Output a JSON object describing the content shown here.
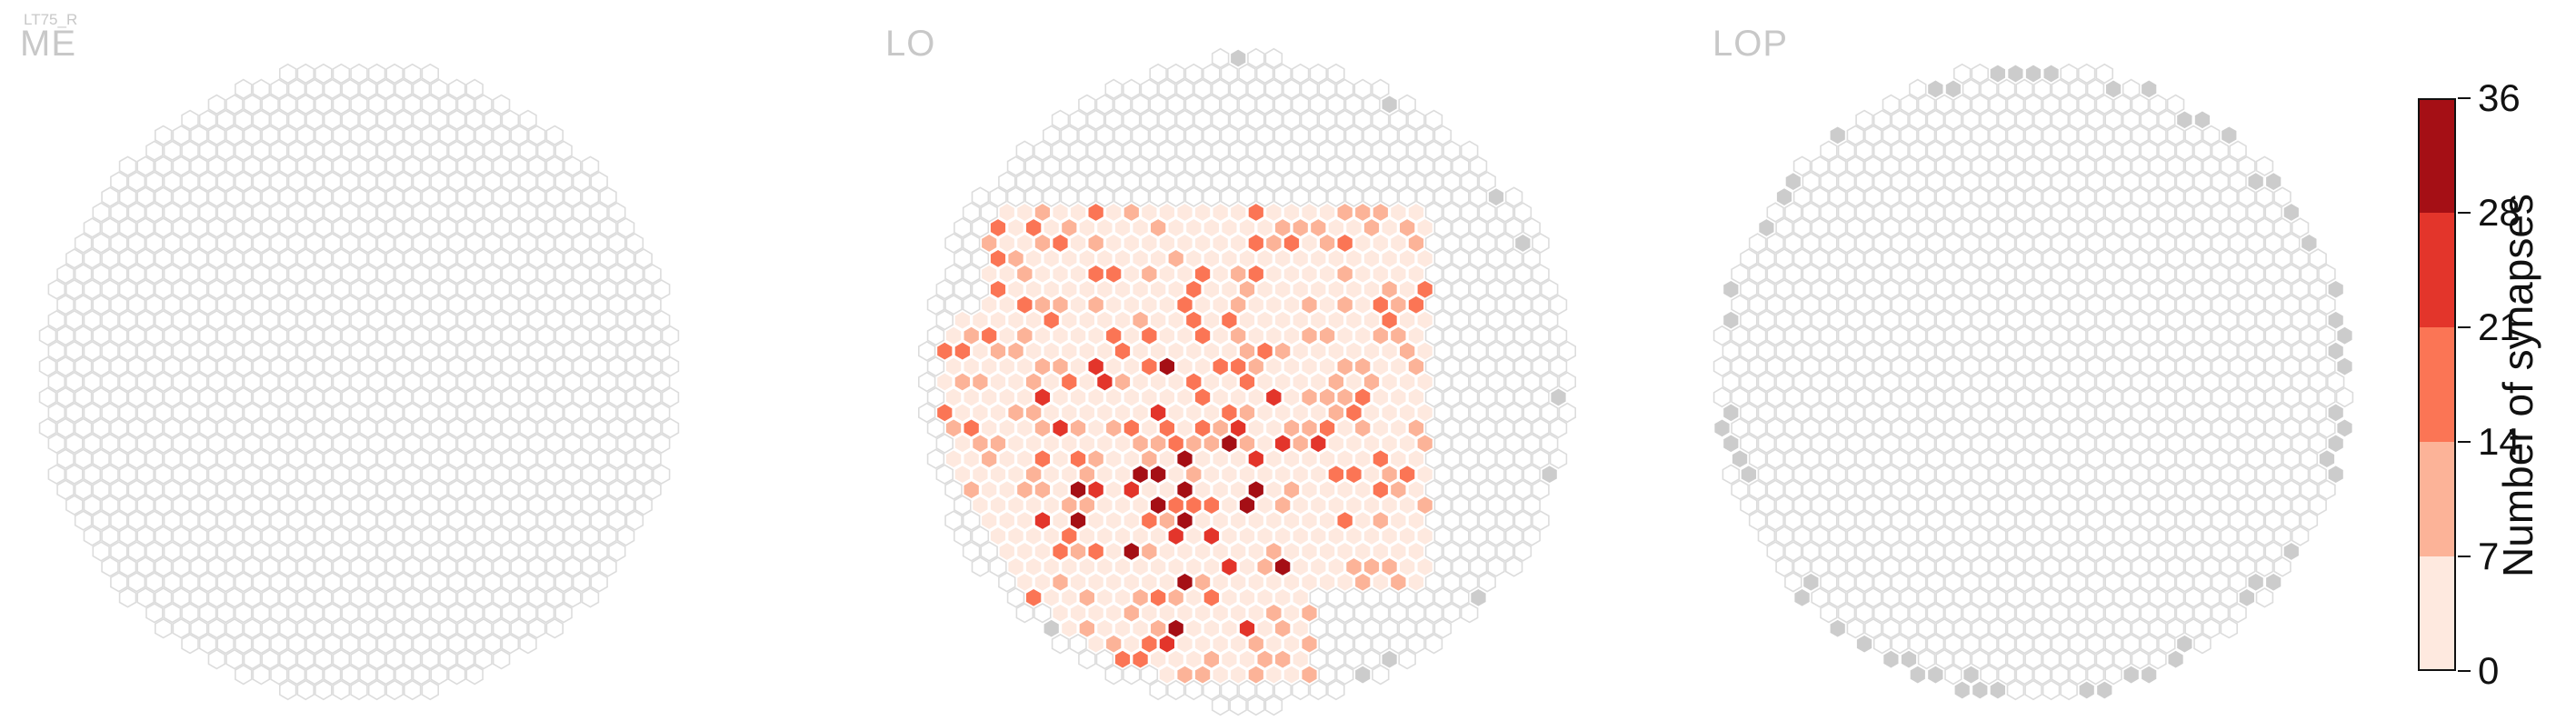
{
  "cell_type_label": "LT75_R",
  "colors": {
    "empty_outline": "#dcdcdc",
    "missing_fill": "#cccccc",
    "bins": [
      "#fee9df",
      "#fcb398",
      "#fb7555",
      "#e3352b",
      "#a50f15"
    ]
  },
  "chart_data": {
    "type": "heatmap",
    "subtype": "hexagonal-column-map",
    "panels": [
      {
        "title": "ME",
        "shape": "disc",
        "occupied": [],
        "missing": []
      },
      {
        "title": "LO",
        "shape": "disc",
        "occupied_region": "lower-left two thirds of the disc",
        "max_value": 36,
        "missing_hint": "grey hexes scattered along the upper-left, left, right and bottom border"
      },
      {
        "title": "LOP",
        "shape": "disc",
        "occupied": [],
        "missing_hint": "grey hexes along the outer ring"
      }
    ],
    "colorbar": {
      "label": "Number of synapses",
      "ticks": [
        0,
        7,
        14,
        21,
        28,
        36
      ],
      "range": [
        0,
        36
      ],
      "bins": 5,
      "colors": [
        "#fee9df",
        "#fcb398",
        "#fb7555",
        "#e3352b",
        "#a50f15"
      ]
    }
  }
}
